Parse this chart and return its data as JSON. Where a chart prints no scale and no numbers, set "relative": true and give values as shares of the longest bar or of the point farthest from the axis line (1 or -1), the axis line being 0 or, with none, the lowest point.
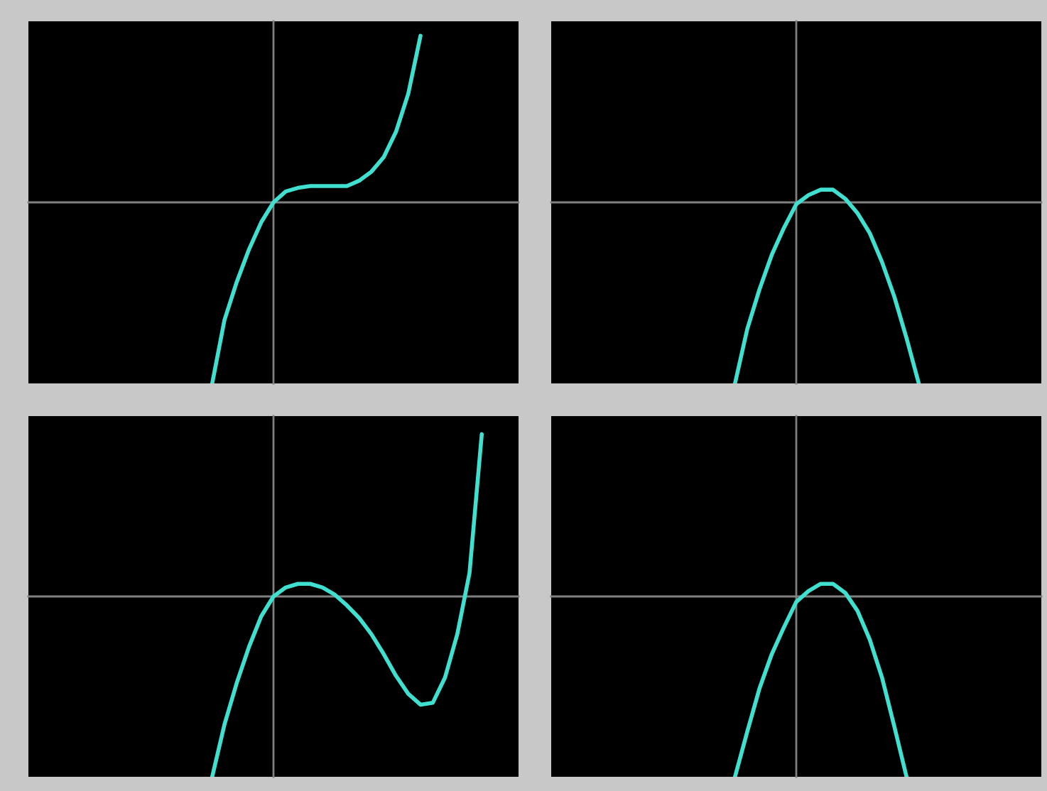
{
  "chart_data": [
    {
      "type": "line",
      "relative": true,
      "categories": [
        null,
        null,
        null,
        null,
        null,
        null,
        null,
        null,
        null,
        null,
        null,
        null,
        null,
        null,
        null,
        null,
        null,
        null,
        null,
        null,
        null,
        null,
        null,
        null,
        null,
        null,
        null,
        null,
        null,
        null,
        null,
        null,
        null,
        null,
        null,
        null,
        null,
        null,
        null,
        null,
        null
      ],
      "series": [
        {
          "color": "#40e0d0",
          "values": [
            null,
            null,
            null,
            null,
            null,
            null,
            null,
            null,
            null,
            null,
            null,
            null,
            null,
            null,
            null,
            -1,
            -0.65,
            -0.44,
            -0.26,
            -0.11,
            0,
            0.06,
            0.08,
            0.09,
            0.09,
            0.09,
            0.09,
            0.12,
            0.17,
            0.25,
            0.39,
            0.6,
            0.92,
            null,
            null,
            null,
            null,
            null,
            null,
            null,
            null
          ]
        }
      ]
    },
    {
      "type": "line",
      "relative": true,
      "categories": [
        null,
        null,
        null,
        null,
        null,
        null,
        null,
        null,
        null,
        null,
        null,
        null,
        null,
        null,
        null,
        null,
        null,
        null,
        null,
        null,
        null,
        null,
        null,
        null,
        null,
        null,
        null,
        null,
        null,
        null,
        null,
        null,
        null,
        null,
        null,
        null,
        null,
        null,
        null,
        null,
        null
      ],
      "series": [
        {
          "color": "#40e0d0",
          "values": [
            null,
            null,
            null,
            null,
            null,
            null,
            null,
            null,
            null,
            null,
            null,
            null,
            null,
            null,
            null,
            -1,
            -0.7,
            -0.48,
            -0.29,
            -0.14,
            -0.01,
            0.04,
            0.07,
            0.07,
            0.02,
            -0.06,
            -0.17,
            -0.33,
            -0.52,
            -0.75,
            -1,
            null,
            null,
            null,
            null,
            null,
            null,
            null,
            null,
            null,
            null
          ]
        }
      ]
    },
    {
      "type": "line",
      "relative": true,
      "categories": [
        null,
        null,
        null,
        null,
        null,
        null,
        null,
        null,
        null,
        null,
        null,
        null,
        null,
        null,
        null,
        null,
        null,
        null,
        null,
        null,
        null,
        null,
        null,
        null,
        null,
        null,
        null,
        null,
        null,
        null,
        null,
        null,
        null,
        null,
        null,
        null,
        null,
        null,
        null,
        null,
        null
      ],
      "series": [
        {
          "color": "#40e0d0",
          "values": [
            null,
            null,
            null,
            null,
            null,
            null,
            null,
            null,
            null,
            null,
            null,
            null,
            null,
            null,
            null,
            -1,
            -0.71,
            -0.48,
            -0.28,
            -0.11,
            0,
            0.05,
            0.07,
            0.07,
            0.05,
            0.01,
            -0.05,
            -0.12,
            -0.21,
            -0.32,
            -0.44,
            -0.54,
            -0.6,
            -0.59,
            -0.45,
            -0.21,
            0.13,
            0.9,
            null,
            null,
            null
          ]
        }
      ]
    },
    {
      "type": "line",
      "relative": true,
      "categories": [
        null,
        null,
        null,
        null,
        null,
        null,
        null,
        null,
        null,
        null,
        null,
        null,
        null,
        null,
        null,
        null,
        null,
        null,
        null,
        null,
        null,
        null,
        null,
        null,
        null,
        null,
        null,
        null,
        null,
        null,
        null,
        null,
        null,
        null,
        null,
        null,
        null,
        null,
        null,
        null,
        null
      ],
      "series": [
        {
          "color": "#40e0d0",
          "values": [
            null,
            null,
            null,
            null,
            null,
            null,
            null,
            null,
            null,
            null,
            null,
            null,
            null,
            null,
            null,
            -1,
            -0.75,
            -0.51,
            -0.32,
            -0.17,
            -0.03,
            0.03,
            0.07,
            0.07,
            0.02,
            -0.08,
            -0.24,
            -0.45,
            -0.72,
            -1,
            null,
            null,
            null,
            null,
            null,
            null,
            null,
            null,
            null,
            null,
            null
          ]
        }
      ]
    }
  ]
}
